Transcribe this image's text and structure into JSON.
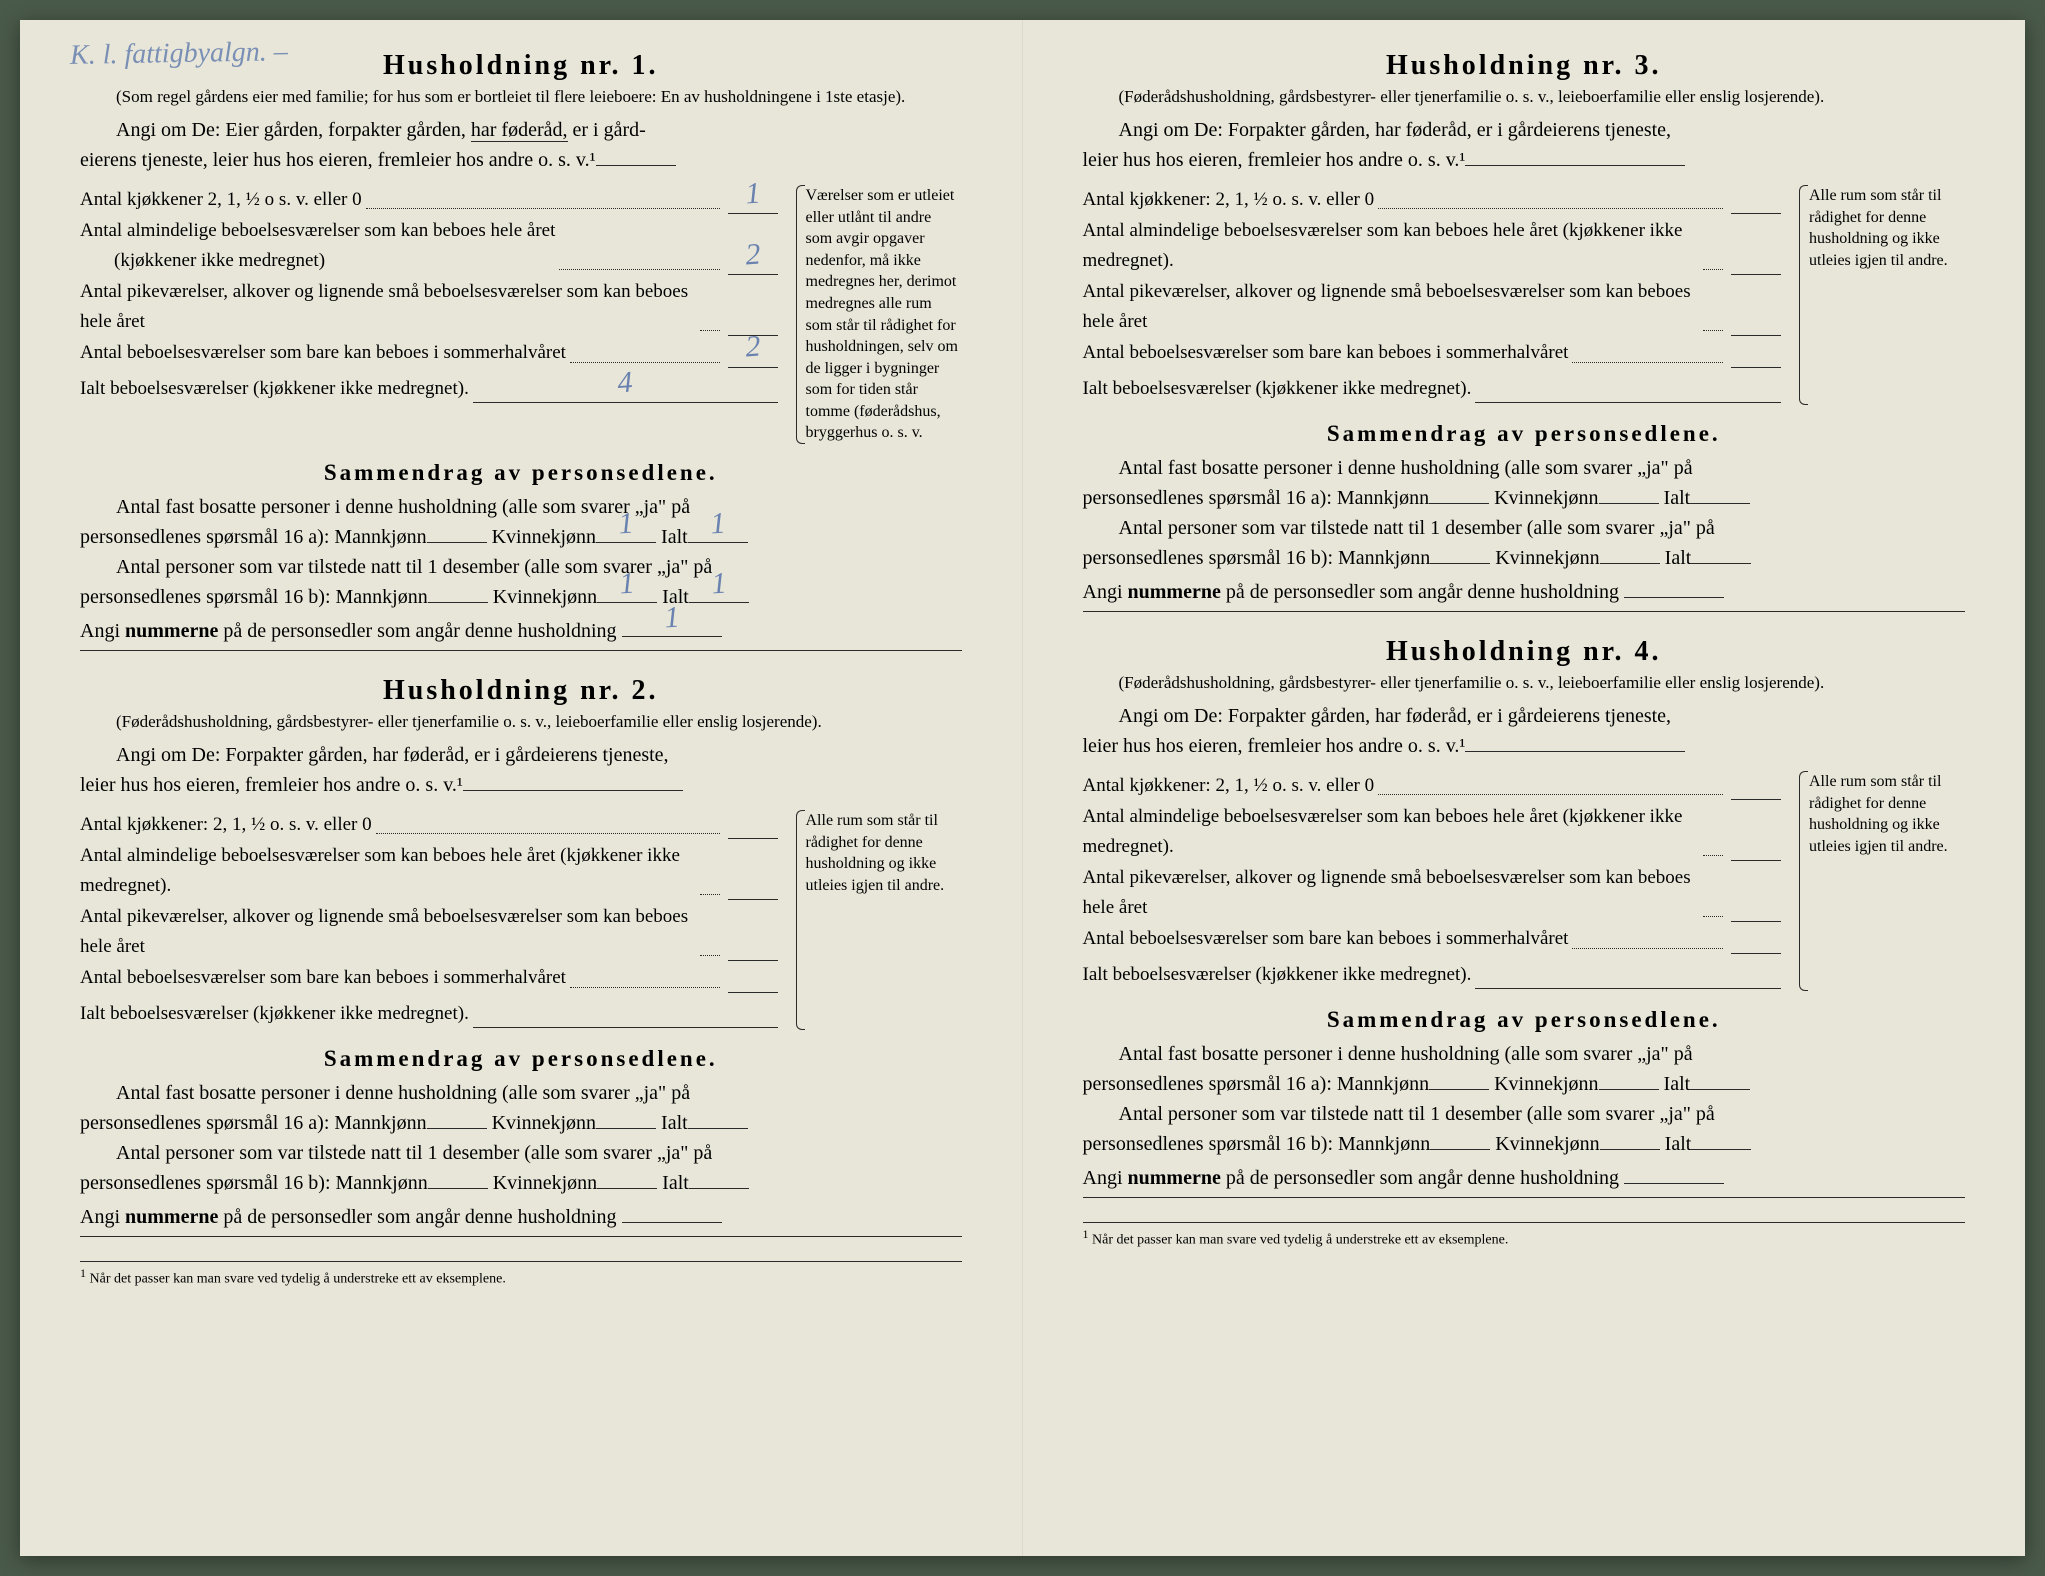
{
  "handwriting_top": "K. l. fattigbyalgn. –",
  "colors": {
    "paper": "#e8e6d8",
    "ink": "#2a2a2a",
    "pencil": "#6a82b0",
    "background": "#4a5a4a"
  },
  "typography": {
    "title_fontsize": 28,
    "body_fontsize": 20,
    "small_fontsize": 17,
    "note_fontsize": 16,
    "foot_fontsize": 14,
    "letter_spacing_title": 3
  },
  "footnote": "Når det passer kan man svare ved tydelig å understreke ett av eksemplene.",
  "footnote_marker": "1",
  "households": [
    {
      "title": "Husholdning nr. 1.",
      "subtitle": "(Som regel gårdens eier med familie; for hus som er bortleiet til flere leieboere: En av husholdningene i 1ste etasje).",
      "angi_a": "Angi om De: Eier gården, forpakter gården,",
      "angi_underlined": "har føderåd,",
      "angi_b": "er i gård-",
      "angi_c": "eierens tjeneste, leier hus hos eieren, fremleier hos andre o. s. v.¹",
      "rows": [
        {
          "label": "Antal kjøkkener 2, 1, ½ o s. v. eller 0",
          "hand": "1"
        },
        {
          "label": "Antal almindelige beboelsesværelser som kan beboes hele året",
          "sublabel": "(kjøkkener ikke medregnet)",
          "hand": "2"
        },
        {
          "label": "Antal pikeværelser, alkover og lignende små beboelsesværelser som kan beboes hele året",
          "hand": ""
        },
        {
          "label": "Antal beboelsesværelser som bare kan beboes i sommerhalvåret",
          "hand": "2"
        }
      ],
      "ialt_label": "Ialt beboelsesværelser (kjøkkener ikke medregnet).",
      "ialt_hand": "4",
      "note": "Værelser som er utleiet eller utlånt til andre som avgir opgaver nedenfor, må ikke medregnes her, derimot medregnes alle rum som står til rådighet for husholdningen, selv om de ligger i bygninger som for tiden står tomme (føderådshus, bryggerhus o. s. v.",
      "sammendrag_title": "Sammendrag av personsedlene.",
      "s_line1a": "Antal fast bosatte personer i denne husholdning (alle som svarer „ja\" på",
      "s_line1b": "personsedlenes spørsmål 16 a): Mannkjønn",
      "s_kv": "Kvinnekjønn",
      "s_ialt": "Ialt",
      "s_line1_kv_hand": "1",
      "s_line1_ialt_hand": "1",
      "s_line2a": "Antal personer som var tilstede natt til 1 desember (alle som svarer „ja\" på",
      "s_line2b": "personsedlenes spørsmål 16 b): Mannkjønn",
      "s_line2_kv_hand": "1",
      "s_line2_ialt_hand": "1",
      "angi_num": "Angi nummerne på de personsedler som angår denne husholdning",
      "angi_num_hand": "1"
    },
    {
      "title": "Husholdning nr. 2.",
      "subtitle": "(Føderådshusholdning, gårdsbestyrer- eller tjenerfamilie o. s. v., leieboerfamilie eller enslig losjerende).",
      "angi_a": "Angi om De: Forpakter gården, har føderåd, er i gårdeierens tjeneste,",
      "angi_c": "leier hus hos eieren, fremleier hos andre o. s. v.¹",
      "rows": [
        {
          "label": "Antal kjøkkener: 2, 1, ½ o. s. v. eller 0",
          "hand": ""
        },
        {
          "label": "Antal almindelige beboelsesværelser som kan beboes hele året (kjøkkener ikke medregnet).",
          "hand": ""
        },
        {
          "label": "Antal pikeværelser, alkover og lignende små beboelsesværelser som kan beboes hele året",
          "hand": ""
        },
        {
          "label": "Antal beboelsesværelser som bare kan beboes i sommerhalvåret",
          "hand": ""
        }
      ],
      "ialt_label": "Ialt beboelsesværelser (kjøkkener ikke medregnet).",
      "ialt_hand": "",
      "note": "Alle rum som står til rådighet for denne husholdning og ikke utleies igjen til andre.",
      "sammendrag_title": "Sammendrag av personsedlene.",
      "s_line1a": "Antal fast bosatte personer i denne husholdning (alle som svarer „ja\" på",
      "s_line1b": "personsedlenes spørsmål 16 a): Mannkjønn",
      "s_kv": "Kvinnekjønn",
      "s_ialt": "Ialt",
      "s_line1_kv_hand": "",
      "s_line1_ialt_hand": "",
      "s_line2a": "Antal personer som var tilstede natt til 1 desember (alle som svarer „ja\" på",
      "s_line2b": "personsedlenes spørsmål 16 b): Mannkjønn",
      "s_line2_kv_hand": "",
      "s_line2_ialt_hand": "",
      "angi_num": "Angi nummerne på de personsedler som angår denne husholdning",
      "angi_num_hand": ""
    },
    {
      "title": "Husholdning nr. 3.",
      "subtitle": "(Føderådshusholdning, gårdsbestyrer- eller tjenerfamilie o. s. v., leieboerfamilie eller enslig losjerende).",
      "angi_a": "Angi om De: Forpakter gården, har føderåd, er i gårdeierens tjeneste,",
      "angi_c": "leier hus hos eieren, fremleier hos andre o. s. v.¹",
      "rows": [
        {
          "label": "Antal kjøkkener: 2, 1, ½ o. s. v. eller 0",
          "hand": ""
        },
        {
          "label": "Antal almindelige beboelsesværelser som kan beboes hele året (kjøkkener ikke medregnet).",
          "hand": ""
        },
        {
          "label": "Antal pikeværelser, alkover og lignende små beboelsesværelser som kan beboes hele året",
          "hand": ""
        },
        {
          "label": "Antal beboelsesværelser som bare kan beboes i sommerhalvåret",
          "hand": ""
        }
      ],
      "ialt_label": "Ialt beboelsesværelser (kjøkkener ikke medregnet).",
      "ialt_hand": "",
      "note": "Alle rum som står til rådighet for denne husholdning og ikke utleies igjen til andre.",
      "sammendrag_title": "Sammendrag av personsedlene.",
      "s_line1a": "Antal fast bosatte personer i denne husholdning (alle som svarer „ja\" på",
      "s_line1b": "personsedlenes spørsmål 16 a): Mannkjønn",
      "s_kv": "Kvinnekjønn",
      "s_ialt": "Ialt",
      "s_line1_kv_hand": "",
      "s_line1_ialt_hand": "",
      "s_line2a": "Antal personer som var tilstede natt til 1 desember (alle som svarer „ja\" på",
      "s_line2b": "personsedlenes spørsmål 16 b): Mannkjønn",
      "s_line2_kv_hand": "",
      "s_line2_ialt_hand": "",
      "angi_num": "Angi nummerne på de personsedler som angår denne husholdning",
      "angi_num_hand": ""
    },
    {
      "title": "Husholdning nr. 4.",
      "subtitle": "(Føderådshusholdning, gårdsbestyrer- eller tjenerfamilie o. s. v., leieboerfamilie eller enslig losjerende).",
      "angi_a": "Angi om De: Forpakter gården, har føderåd, er i gårdeierens tjeneste,",
      "angi_c": "leier hus hos eieren, fremleier hos andre o. s. v.¹",
      "rows": [
        {
          "label": "Antal kjøkkener: 2, 1, ½ o. s. v. eller 0",
          "hand": ""
        },
        {
          "label": "Antal almindelige beboelsesværelser som kan beboes hele året (kjøkkener ikke medregnet).",
          "hand": ""
        },
        {
          "label": "Antal pikeværelser, alkover og lignende små beboelsesværelser som kan beboes hele året",
          "hand": ""
        },
        {
          "label": "Antal beboelsesværelser som bare kan beboes i sommerhalvåret",
          "hand": ""
        }
      ],
      "ialt_label": "Ialt beboelsesværelser (kjøkkener ikke medregnet).",
      "ialt_hand": "",
      "note": "Alle rum som står til rådighet for denne husholdning og ikke utleies igjen til andre.",
      "sammendrag_title": "Sammendrag av personsedlene.",
      "s_line1a": "Antal fast bosatte personer i denne husholdning (alle som svarer „ja\" på",
      "s_line1b": "personsedlenes spørsmål 16 a): Mannkjønn",
      "s_kv": "Kvinnekjønn",
      "s_ialt": "Ialt",
      "s_line1_kv_hand": "",
      "s_line1_ialt_hand": "",
      "s_line2a": "Antal personer som var tilstede natt til 1 desember (alle som svarer „ja\" på",
      "s_line2b": "personsedlenes spørsmål 16 b): Mannkjønn",
      "s_line2_kv_hand": "",
      "s_line2_ialt_hand": "",
      "angi_num": "Angi nummerne på de personsedler som angår denne husholdning",
      "angi_num_hand": ""
    }
  ]
}
